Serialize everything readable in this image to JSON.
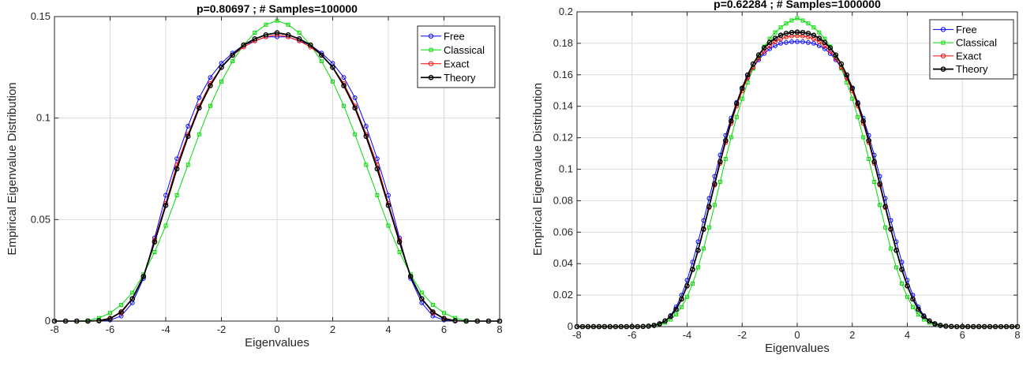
{
  "chart_data": [
    {
      "type": "line",
      "title": "p=0.80697 ;  # Samples=100000",
      "xlabel": "Eigenvalues",
      "ylabel": "Empirical Eigenvalue Distribution",
      "xlim": [
        -8,
        8
      ],
      "ylim": [
        0,
        0.15
      ],
      "xticks": [
        -8,
        -6,
        -4,
        -2,
        0,
        2,
        4,
        6,
        8
      ],
      "yticks": [
        0,
        0.05,
        0.1,
        0.15
      ],
      "ytick_labels": [
        "0",
        "0.05",
        "0.1",
        "0.15"
      ],
      "grid": true,
      "legend_position": "top-right",
      "x": [
        -8.0,
        -7.6,
        -7.2,
        -6.8,
        -6.4,
        -6.0,
        -5.6,
        -5.2,
        -4.8,
        -4.4,
        -4.0,
        -3.6,
        -3.2,
        -2.8,
        -2.4,
        -2.0,
        -1.6,
        -1.2,
        -0.8,
        -0.4,
        0.0,
        0.4,
        0.8,
        1.2,
        1.6,
        2.0,
        2.4,
        2.8,
        3.2,
        3.6,
        4.0,
        4.4,
        4.8,
        5.2,
        5.6,
        6.0,
        6.4,
        6.8,
        7.2,
        7.6,
        8.0
      ],
      "series": [
        {
          "name": "Free",
          "color": "#0000ff",
          "marker": "circle",
          "values": [
            0,
            0,
            0,
            0,
            0,
            0.0005,
            0.0025,
            0.009,
            0.021,
            0.041,
            0.062,
            0.08,
            0.096,
            0.11,
            0.12,
            0.127,
            0.132,
            0.136,
            0.138,
            0.14,
            0.14,
            0.14,
            0.138,
            0.136,
            0.132,
            0.127,
            0.12,
            0.11,
            0.096,
            0.08,
            0.062,
            0.041,
            0.021,
            0.009,
            0.0025,
            0.0005,
            0,
            0,
            0,
            0,
            0
          ]
        },
        {
          "name": "Classical",
          "color": "#00dd00",
          "marker": "square",
          "values": [
            0,
            0,
            0,
            0.0003,
            0.0015,
            0.004,
            0.008,
            0.014,
            0.023,
            0.034,
            0.047,
            0.062,
            0.077,
            0.092,
            0.106,
            0.118,
            0.128,
            0.136,
            0.142,
            0.146,
            0.148,
            0.146,
            0.142,
            0.136,
            0.128,
            0.118,
            0.106,
            0.092,
            0.077,
            0.062,
            0.047,
            0.034,
            0.023,
            0.014,
            0.008,
            0.004,
            0.0015,
            0.0003,
            0,
            0,
            0
          ]
        },
        {
          "name": "Exact",
          "color": "#ff0000",
          "marker": "circle",
          "values": [
            0,
            0,
            0,
            0,
            0.0003,
            0.0015,
            0.004,
            0.011,
            0.022,
            0.04,
            0.058,
            0.077,
            0.092,
            0.106,
            0.117,
            0.125,
            0.131,
            0.135,
            0.138,
            0.14,
            0.141,
            0.14,
            0.138,
            0.135,
            0.131,
            0.125,
            0.117,
            0.106,
            0.092,
            0.077,
            0.058,
            0.04,
            0.022,
            0.011,
            0.004,
            0.0015,
            0.0003,
            0,
            0,
            0,
            0
          ]
        },
        {
          "name": "Theory",
          "color": "#000000",
          "marker": "circle",
          "values": [
            0,
            0,
            0,
            0,
            0.0002,
            0.0012,
            0.0045,
            0.011,
            0.022,
            0.039,
            0.057,
            0.075,
            0.091,
            0.105,
            0.116,
            0.125,
            0.131,
            0.136,
            0.139,
            0.141,
            0.142,
            0.141,
            0.139,
            0.136,
            0.131,
            0.125,
            0.116,
            0.105,
            0.091,
            0.075,
            0.057,
            0.039,
            0.022,
            0.011,
            0.0045,
            0.0012,
            0.0002,
            0,
            0,
            0,
            0
          ]
        }
      ]
    },
    {
      "type": "line",
      "title": "p=0.62284 ;  # Samples=1000000",
      "xlabel": "Eigenvalues",
      "ylabel": "Empirical Eigenvalue Distribution",
      "xlim": [
        -8,
        8
      ],
      "ylim": [
        0,
        0.2
      ],
      "xticks": [
        -8,
        -6,
        -4,
        -2,
        0,
        2,
        4,
        6,
        8
      ],
      "yticks": [
        0,
        0.02,
        0.04,
        0.06,
        0.08,
        0.1,
        0.12,
        0.14,
        0.16,
        0.18,
        0.2
      ],
      "ytick_labels": [
        "0",
        "0.02",
        "0.04",
        "0.06",
        "0.08",
        "0.1",
        "0.12",
        "0.14",
        "0.16",
        "0.18",
        "0.2"
      ],
      "grid": true,
      "legend_position": "top-right",
      "x": [
        -8.0,
        -7.8,
        -7.6,
        -7.4,
        -7.2,
        -7.0,
        -6.8,
        -6.6,
        -6.4,
        -6.2,
        -6.0,
        -5.8,
        -5.6,
        -5.4,
        -5.2,
        -5.0,
        -4.8,
        -4.6,
        -4.4,
        -4.2,
        -4.0,
        -3.8,
        -3.6,
        -3.4,
        -3.2,
        -3.0,
        -2.8,
        -2.6,
        -2.4,
        -2.2,
        -2.0,
        -1.8,
        -1.6,
        -1.4,
        -1.2,
        -1.0,
        -0.8,
        -0.6,
        -0.4,
        -0.2,
        0.0,
        0.2,
        0.4,
        0.6,
        0.8,
        1.0,
        1.2,
        1.4,
        1.6,
        1.8,
        2.0,
        2.2,
        2.4,
        2.6,
        2.8,
        3.0,
        3.2,
        3.4,
        3.6,
        3.8,
        4.0,
        4.2,
        4.4,
        4.6,
        4.8,
        5.0,
        5.2,
        5.4,
        5.6,
        5.8,
        6.0,
        6.2,
        6.4,
        6.6,
        6.8,
        7.0,
        7.2,
        7.4,
        7.6,
        7.8,
        8.0
      ],
      "series": [
        {
          "name": "Free",
          "color": "#0000ff",
          "marker": "circle",
          "values": [
            0,
            0,
            0,
            0,
            0,
            0,
            0,
            0,
            0,
            0,
            0,
            0,
            0,
            0.0002,
            0.0006,
            0.0015,
            0.0035,
            0.007,
            0.0125,
            0.02,
            0.0295,
            0.041,
            0.054,
            0.0675,
            0.0815,
            0.0955,
            0.109,
            0.1215,
            0.1325,
            0.1425,
            0.151,
            0.1585,
            0.1645,
            0.1695,
            0.1735,
            0.1765,
            0.1785,
            0.18,
            0.1805,
            0.181,
            0.181,
            0.181,
            0.1805,
            0.18,
            0.1785,
            0.1765,
            0.1735,
            0.1695,
            0.1645,
            0.1585,
            0.151,
            0.1425,
            0.1325,
            0.1215,
            0.109,
            0.0955,
            0.0815,
            0.0675,
            0.054,
            0.041,
            0.0295,
            0.02,
            0.0125,
            0.007,
            0.0035,
            0.0015,
            0.0006,
            0.0002,
            0,
            0,
            0,
            0,
            0,
            0,
            0,
            0,
            0,
            0,
            0,
            0,
            0
          ]
        },
        {
          "name": "Classical",
          "color": "#00dd00",
          "marker": "square",
          "values": [
            0,
            0,
            0,
            0,
            0,
            0,
            0,
            0,
            0,
            0,
            0,
            0,
            0.0001,
            0.0003,
            0.0007,
            0.0013,
            0.0025,
            0.0045,
            0.0077,
            0.0124,
            0.0189,
            0.0273,
            0.0376,
            0.0496,
            0.063,
            0.0773,
            0.092,
            0.1065,
            0.1203,
            0.1332,
            0.1448,
            0.1551,
            0.164,
            0.1716,
            0.1779,
            0.1829,
            0.1869,
            0.1901,
            0.1926,
            0.1945,
            0.196,
            0.1945,
            0.1926,
            0.1901,
            0.1869,
            0.1829,
            0.1779,
            0.1716,
            0.164,
            0.1551,
            0.1448,
            0.1332,
            0.1203,
            0.1065,
            0.092,
            0.0773,
            0.063,
            0.0496,
            0.0376,
            0.0273,
            0.0189,
            0.0124,
            0.0077,
            0.0045,
            0.0025,
            0.0013,
            0.0007,
            0.0003,
            0.0001,
            0,
            0,
            0,
            0,
            0,
            0,
            0,
            0,
            0,
            0,
            0,
            0
          ]
        },
        {
          "name": "Exact",
          "color": "#ff0000",
          "marker": "circle",
          "values": [
            0,
            0,
            0,
            0,
            0,
            0,
            0,
            0,
            0,
            0,
            0,
            0,
            0.0001,
            0.0003,
            0.0008,
            0.0018,
            0.0036,
            0.0066,
            0.0111,
            0.0176,
            0.026,
            0.0364,
            0.0484,
            0.0616,
            0.0756,
            0.0898,
            0.1037,
            0.1169,
            0.1291,
            0.1401,
            0.1497,
            0.1579,
            0.1648,
            0.1704,
            0.1749,
            0.1784,
            0.181,
            0.1828,
            0.184,
            0.1846,
            0.1848,
            0.1846,
            0.184,
            0.1828,
            0.181,
            0.1784,
            0.1749,
            0.1704,
            0.1648,
            0.1579,
            0.1497,
            0.1401,
            0.1291,
            0.1169,
            0.1037,
            0.0898,
            0.0756,
            0.0616,
            0.0484,
            0.0364,
            0.026,
            0.0176,
            0.0111,
            0.0066,
            0.0036,
            0.0018,
            0.0008,
            0.0003,
            0.0001,
            0,
            0,
            0,
            0,
            0,
            0,
            0,
            0,
            0,
            0,
            0,
            0
          ]
        },
        {
          "name": "Theory",
          "color": "#000000",
          "marker": "circle",
          "values": [
            0,
            0,
            0,
            0,
            0,
            0,
            0,
            0,
            0,
            0,
            0,
            0,
            0.0001,
            0.0003,
            0.0008,
            0.0018,
            0.0036,
            0.0065,
            0.011,
            0.0175,
            0.0259,
            0.0363,
            0.0485,
            0.062,
            0.0763,
            0.0907,
            0.1048,
            0.1182,
            0.1306,
            0.1417,
            0.1515,
            0.1599,
            0.1669,
            0.1726,
            0.1771,
            0.1806,
            0.1832,
            0.1851,
            0.1863,
            0.1869,
            0.1871,
            0.1869,
            0.1863,
            0.1851,
            0.1832,
            0.1806,
            0.1771,
            0.1726,
            0.1669,
            0.1599,
            0.1515,
            0.1417,
            0.1306,
            0.1182,
            0.1048,
            0.0907,
            0.0763,
            0.062,
            0.0485,
            0.0363,
            0.0259,
            0.0175,
            0.011,
            0.0065,
            0.0036,
            0.0018,
            0.0008,
            0.0003,
            0.0001,
            0,
            0,
            0,
            0,
            0,
            0,
            0,
            0,
            0,
            0,
            0,
            0
          ]
        }
      ]
    }
  ]
}
